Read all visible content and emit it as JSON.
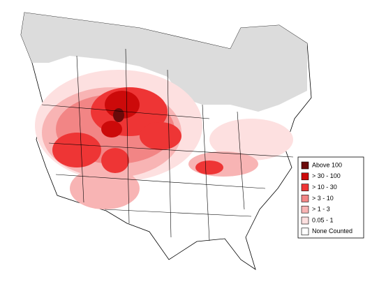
{
  "legend": {
    "items": [
      {
        "label": "Above 100",
        "color": "#6b0a0a"
      },
      {
        "label": "> 30 - 100",
        "color": "#cc0a0a"
      },
      {
        "label": "> 10 - 30",
        "color": "#ee3535"
      },
      {
        "label": "> 3 - 10",
        "color": "#f28585"
      },
      {
        "label": "> 1 - 3",
        "color": "#f8b4b4"
      },
      {
        "label": "0.05 - 1",
        "color": "#fde0e0"
      },
      {
        "label": "None Counted",
        "color": "#ffffff"
      }
    ]
  }
}
